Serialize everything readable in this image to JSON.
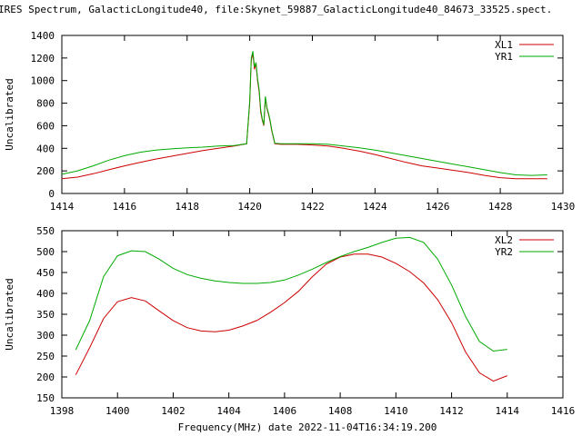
{
  "title": "IRES Spectrum, GalacticLongitude40, file:Skynet_59887_GalacticLongitude40_84673_33525.spect.",
  "xlabel": "Frequency(MHz) date 2022-11-04T16:34:19.200",
  "chart_data": [
    {
      "type": "line",
      "title": "IRES Spectrum, GalacticLongitude40, file:Skynet_59887_GalacticLongitude40_84673_33525.spect.",
      "xlabel": "",
      "ylabel": "Uncalibrated",
      "xlim": [
        1414,
        1430
      ],
      "ylim": [
        0,
        1400
      ],
      "xticks": [
        1414,
        1416,
        1418,
        1420,
        1422,
        1424,
        1426,
        1428,
        1430
      ],
      "yticks": [
        0,
        200,
        400,
        600,
        800,
        1000,
        1200,
        1400
      ],
      "grid": false,
      "legend": "top-right",
      "series": [
        {
          "name": "XL1",
          "color": "#cc0000",
          "x": [
            1414.0,
            1414.5,
            1415.0,
            1415.5,
            1416.0,
            1416.5,
            1417.0,
            1417.5,
            1418.0,
            1418.5,
            1419.0,
            1419.5,
            1419.9,
            1420.0,
            1420.05,
            1420.1,
            1420.15,
            1420.2,
            1420.25,
            1420.3,
            1420.35,
            1420.4,
            1420.45,
            1420.5,
            1420.55,
            1420.6,
            1420.65,
            1420.7,
            1420.8,
            1421.0,
            1421.5,
            1422.0,
            1422.5,
            1423.0,
            1423.5,
            1424.0,
            1424.5,
            1425.0,
            1425.5,
            1426.0,
            1426.5,
            1427.0,
            1427.5,
            1428.0,
            1428.5,
            1429.0,
            1429.5
          ],
          "y": [
            130,
            145,
            175,
            210,
            245,
            275,
            305,
            330,
            355,
            380,
            400,
            420,
            440,
            800,
            1180,
            1240,
            1100,
            1150,
            1000,
            900,
            720,
            650,
            600,
            850,
            750,
            700,
            640,
            560,
            440,
            435,
            435,
            430,
            420,
            400,
            375,
            345,
            310,
            275,
            245,
            225,
            205,
            185,
            160,
            140,
            130,
            130,
            130
          ]
        },
        {
          "name": "YR1",
          "color": "#00aa00",
          "x": [
            1414.0,
            1414.5,
            1415.0,
            1415.5,
            1416.0,
            1416.5,
            1417.0,
            1417.5,
            1418.0,
            1418.5,
            1419.0,
            1419.5,
            1419.9,
            1420.0,
            1420.05,
            1420.1,
            1420.15,
            1420.2,
            1420.25,
            1420.3,
            1420.35,
            1420.4,
            1420.45,
            1420.5,
            1420.55,
            1420.6,
            1420.65,
            1420.7,
            1420.8,
            1421.0,
            1421.5,
            1422.0,
            1422.5,
            1423.0,
            1423.5,
            1424.0,
            1424.5,
            1425.0,
            1425.5,
            1426.0,
            1426.5,
            1427.0,
            1427.5,
            1428.0,
            1428.5,
            1429.0,
            1429.5
          ],
          "y": [
            170,
            200,
            245,
            295,
            335,
            365,
            385,
            395,
            405,
            410,
            420,
            425,
            440,
            820,
            1200,
            1260,
            1120,
            1160,
            1020,
            920,
            740,
            660,
            610,
            860,
            760,
            710,
            650,
            570,
            445,
            440,
            440,
            440,
            435,
            420,
            405,
            385,
            360,
            335,
            310,
            285,
            260,
            235,
            210,
            185,
            165,
            160,
            165
          ]
        }
      ]
    },
    {
      "type": "line",
      "title": "",
      "xlabel": "Frequency(MHz) date 2022-11-04T16:34:19.200",
      "ylabel": "Uncalibrated",
      "xlim": [
        1398,
        1416
      ],
      "ylim": [
        150,
        550
      ],
      "xticks": [
        1398,
        1400,
        1402,
        1404,
        1406,
        1408,
        1410,
        1412,
        1414,
        1416
      ],
      "yticks": [
        150,
        200,
        250,
        300,
        350,
        400,
        450,
        500,
        550
      ],
      "grid": false,
      "legend": "top-right",
      "series": [
        {
          "name": "XL2",
          "color": "#cc0000",
          "x": [
            1398.5,
            1399.0,
            1399.5,
            1400.0,
            1400.5,
            1401.0,
            1401.5,
            1402.0,
            1402.5,
            1403.0,
            1403.5,
            1404.0,
            1404.5,
            1405.0,
            1405.5,
            1406.0,
            1406.5,
            1407.0,
            1407.5,
            1408.0,
            1408.5,
            1409.0,
            1409.5,
            1410.0,
            1410.5,
            1411.0,
            1411.5,
            1412.0,
            1412.5,
            1413.0,
            1413.5,
            1414.0
          ],
          "y": [
            205,
            270,
            340,
            380,
            390,
            382,
            358,
            335,
            318,
            310,
            308,
            312,
            322,
            335,
            355,
            378,
            405,
            440,
            470,
            487,
            494,
            494,
            487,
            472,
            452,
            425,
            385,
            330,
            260,
            210,
            190,
            203
          ]
        },
        {
          "name": "YR2",
          "color": "#00aa00",
          "x": [
            1398.5,
            1399.0,
            1399.5,
            1400.0,
            1400.5,
            1401.0,
            1401.5,
            1402.0,
            1402.5,
            1403.0,
            1403.5,
            1404.0,
            1404.5,
            1405.0,
            1405.5,
            1406.0,
            1406.5,
            1407.0,
            1407.5,
            1408.0,
            1408.5,
            1409.0,
            1409.5,
            1410.0,
            1410.5,
            1411.0,
            1411.5,
            1412.0,
            1412.5,
            1413.0,
            1413.5,
            1414.0
          ],
          "y": [
            265,
            335,
            440,
            490,
            502,
            500,
            482,
            460,
            445,
            436,
            430,
            426,
            424,
            424,
            426,
            432,
            444,
            458,
            474,
            488,
            500,
            510,
            522,
            532,
            534,
            522,
            482,
            420,
            345,
            285,
            262,
            266
          ]
        }
      ]
    }
  ]
}
